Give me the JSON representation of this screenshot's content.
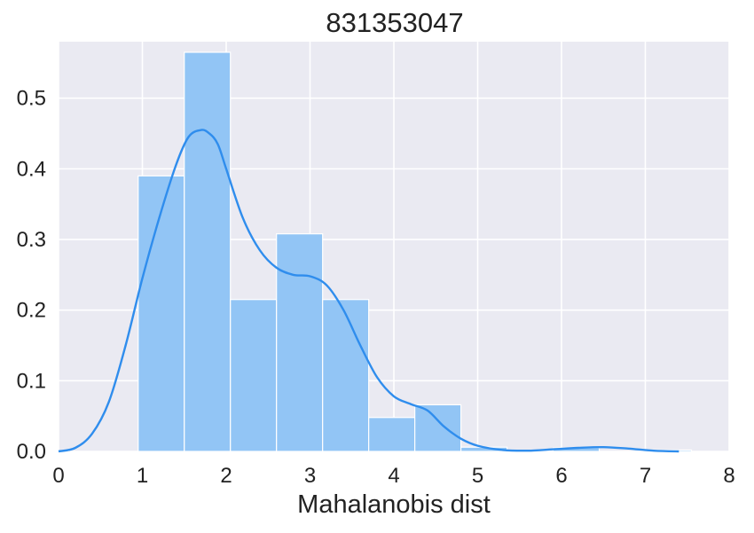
{
  "chart_data": {
    "type": "bar",
    "title": "831353047",
    "xlabel": "Mahalanobis dist",
    "ylabel": "",
    "xlim": [
      0,
      8
    ],
    "ylim": [
      0,
      0.58
    ],
    "xticks": [
      0,
      1,
      2,
      3,
      4,
      5,
      6,
      7,
      8
    ],
    "yticks": [
      0.0,
      0.1,
      0.2,
      0.3,
      0.4,
      0.5
    ],
    "ytick_labels": [
      "0.0",
      "0.1",
      "0.2",
      "0.3",
      "0.4",
      "0.5"
    ],
    "grid": true,
    "legend": "none",
    "histogram": {
      "bin_edges": [
        0.95,
        1.5,
        2.05,
        2.6,
        3.15,
        3.7,
        4.25,
        4.8,
        5.35,
        5.9,
        6.45,
        7.0,
        7.55
      ],
      "values": [
        0.39,
        0.565,
        0.215,
        0.308,
        0.215,
        0.048,
        0.066,
        0.006,
        0.0,
        0.005,
        0.0,
        0.002
      ]
    },
    "kde": {
      "x": [
        0.0,
        0.2,
        0.4,
        0.6,
        0.8,
        1.0,
        1.2,
        1.4,
        1.55,
        1.7,
        1.8,
        1.9,
        2.0,
        2.2,
        2.4,
        2.6,
        2.8,
        3.0,
        3.2,
        3.4,
        3.6,
        3.8,
        4.0,
        4.2,
        4.4,
        4.6,
        4.8,
        5.0,
        5.3,
        5.6,
        5.9,
        6.2,
        6.5,
        6.8,
        7.1,
        7.4
      ],
      "y": [
        0.0,
        0.005,
        0.025,
        0.07,
        0.15,
        0.245,
        0.33,
        0.405,
        0.445,
        0.455,
        0.45,
        0.435,
        0.4,
        0.33,
        0.285,
        0.26,
        0.25,
        0.248,
        0.235,
        0.2,
        0.15,
        0.105,
        0.078,
        0.067,
        0.058,
        0.035,
        0.018,
        0.008,
        0.002,
        0.001,
        0.003,
        0.005,
        0.006,
        0.004,
        0.001,
        0.0
      ]
    },
    "colors": {
      "background": "#eaeaf2",
      "grid": "#ffffff",
      "bar": "#92c5f5",
      "bar_edge": "#ffffff",
      "kde": "#2f8ded",
      "text": "#222222"
    }
  }
}
